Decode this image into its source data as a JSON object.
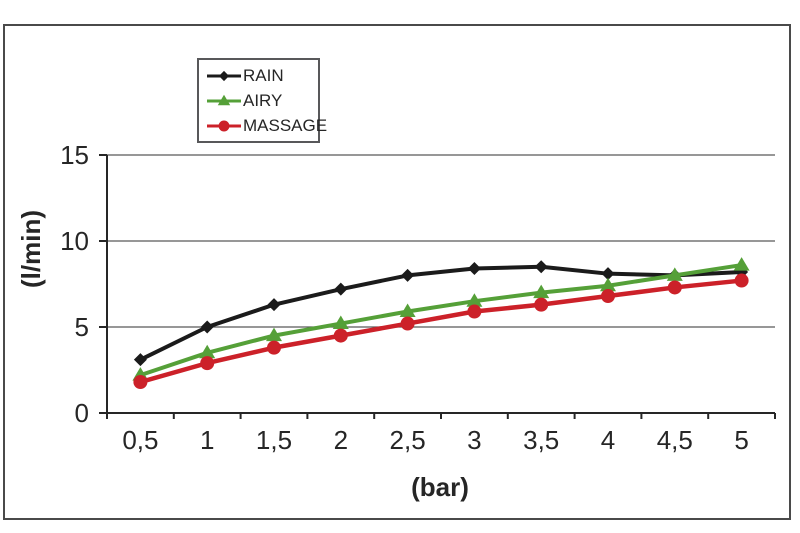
{
  "style": {
    "background": "#ffffff",
    "frame_border_color": "#4a4a4a",
    "legend_border_color": "#58585a",
    "grid_color": "#595959",
    "axis_color": "#262626",
    "text_color": "#262626"
  },
  "chart_data": {
    "type": "line",
    "title": "",
    "xlabel": "(bar)",
    "ylabel": "(l/min)",
    "x": [
      0.5,
      1,
      1.5,
      2,
      2.5,
      3,
      3.5,
      4,
      4.5,
      5
    ],
    "x_tick_labels": [
      "0,5",
      "1",
      "1,5",
      "2",
      "2,5",
      "3",
      "3,5",
      "4",
      "4,5",
      "5"
    ],
    "y_ticks": [
      0,
      5,
      10,
      15
    ],
    "y_tick_labels": [
      "0",
      "5",
      "10",
      "15"
    ],
    "ylim": [
      0,
      15
    ],
    "grid": true,
    "legend_position": "top-left-inside",
    "series": [
      {
        "name": "RAIN",
        "color": "#1b1b1b",
        "marker": "diamond",
        "values": [
          3.1,
          5.0,
          6.3,
          7.2,
          8.0,
          8.4,
          8.5,
          8.1,
          8.0,
          8.2
        ]
      },
      {
        "name": "AIRY",
        "color": "#55a038",
        "marker": "triangle",
        "values": [
          2.2,
          3.5,
          4.5,
          5.2,
          5.9,
          6.5,
          7.0,
          7.4,
          8.0,
          8.6
        ]
      },
      {
        "name": "MASSAGE",
        "color": "#cc2129",
        "marker": "circle",
        "values": [
          1.8,
          2.9,
          3.8,
          4.5,
          5.2,
          5.9,
          6.3,
          6.8,
          7.3,
          7.7
        ]
      }
    ]
  }
}
